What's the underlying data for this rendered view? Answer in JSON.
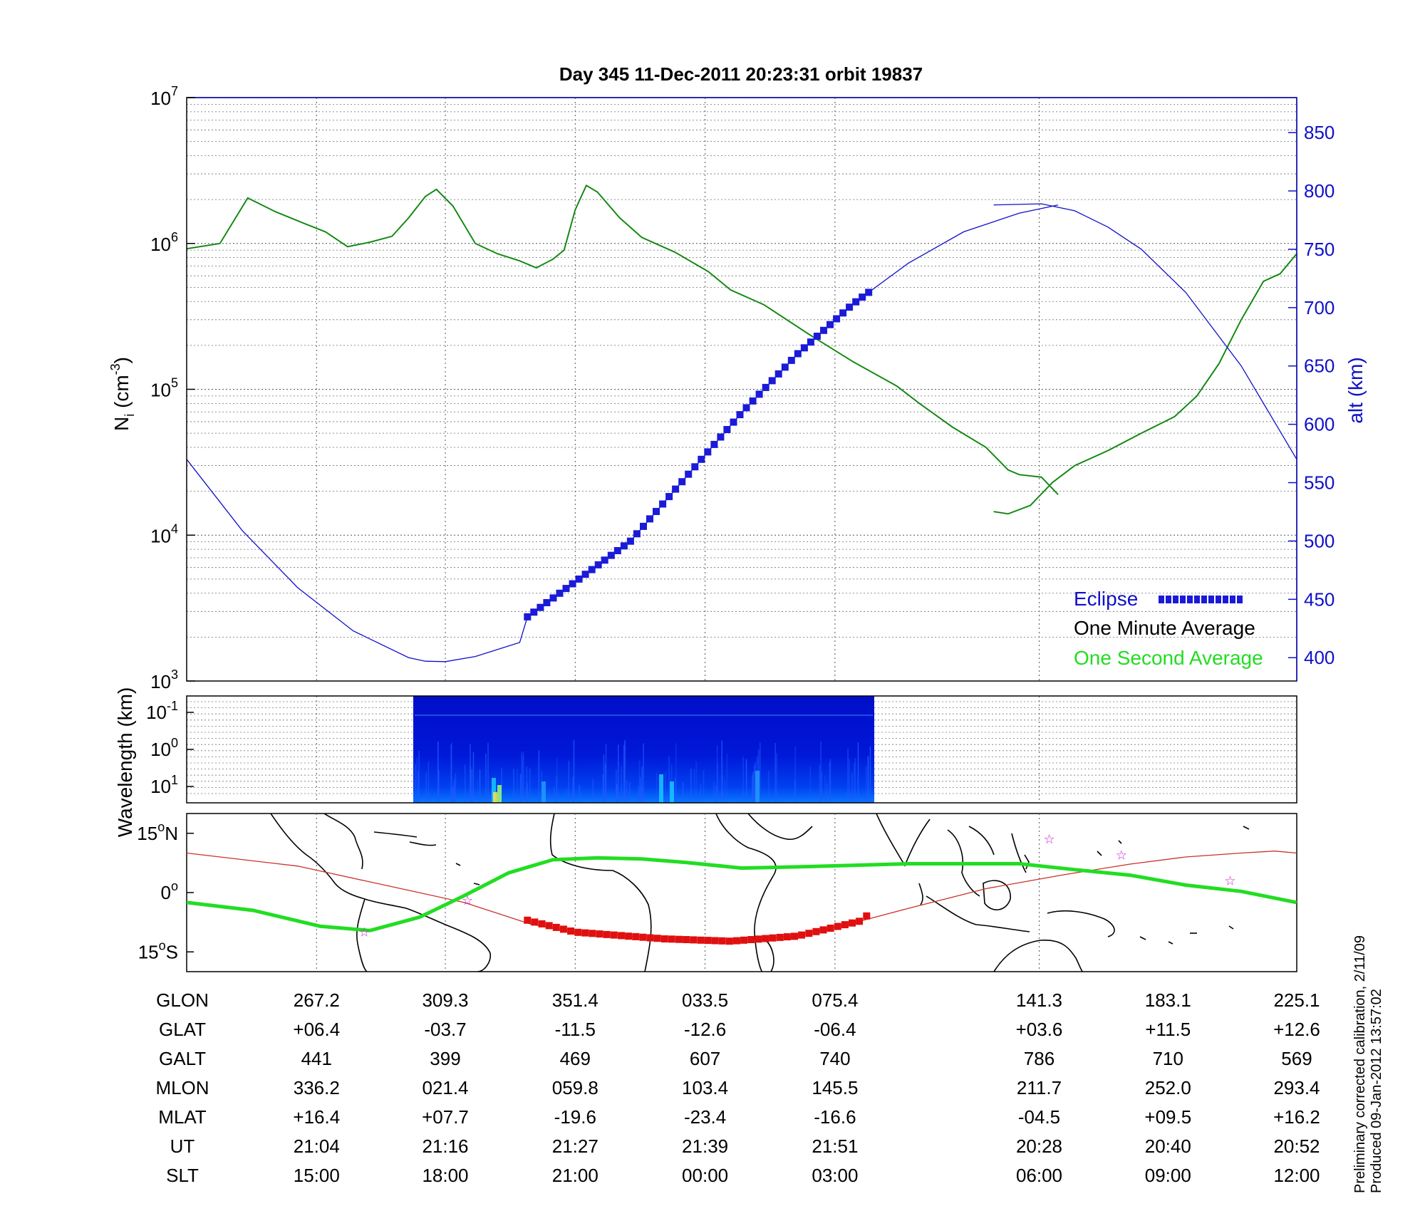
{
  "chart_data": [
    {
      "type": "line",
      "title": "Day 345  11-Dec-2011 20:23:31   orbit 19837",
      "ylabel": "N",
      "ylabel_sub": "i",
      "ylabel_unit": "(cm",
      "ylabel_unit_exp": "-3",
      "ylabel_unit_end": ")",
      "yscale": "log",
      "ylim": [
        1000,
        10000000
      ],
      "y_ticks": [
        {
          "base": "10",
          "exp": "3",
          "value": 1000
        },
        {
          "base": "10",
          "exp": "4",
          "value": 10000
        },
        {
          "base": "10",
          "exp": "5",
          "value": 100000
        },
        {
          "base": "10",
          "exp": "6",
          "value": 1000000
        },
        {
          "base": "10",
          "exp": "7",
          "value": 10000000
        }
      ],
      "y2label": "alt (km)",
      "y2lim": [
        380,
        880
      ],
      "y2_ticks": [
        "400",
        "450",
        "500",
        "550",
        "600",
        "650",
        "700",
        "750",
        "800",
        "850"
      ],
      "grid": true,
      "legend_position": "bottom-right",
      "legend": [
        {
          "label": "Eclipse",
          "color": "#1a1ad8"
        },
        {
          "label": "One Minute Average",
          "color": "#000000"
        },
        {
          "label": "One Second Average",
          "color": "#22dd22"
        }
      ],
      "series": [
        {
          "name": "One Minute Average",
          "color": "#1e6b1e",
          "segments": [
            [
              [
                0,
                920000
              ],
              [
                0.03,
                1000000
              ],
              [
                0.055,
                2050000
              ],
              [
                0.08,
                1650000
              ],
              [
                0.105,
                1380000
              ],
              [
                0.125,
                1200000
              ],
              [
                0.145,
                950000
              ],
              [
                0.165,
                1020000
              ],
              [
                0.185,
                1120000
              ],
              [
                0.2,
                1500000
              ],
              [
                0.215,
                2100000
              ],
              [
                0.225,
                2350000
              ],
              [
                0.24,
                1800000
              ],
              [
                0.26,
                1000000
              ],
              [
                0.28,
                850000
              ],
              [
                0.3,
                760000
              ],
              [
                0.315,
                680000
              ],
              [
                0.33,
                780000
              ],
              [
                0.34,
                900000
              ],
              [
                0.35,
                1700000
              ],
              [
                0.36,
                2500000
              ],
              [
                0.37,
                2250000
              ],
              [
                0.39,
                1500000
              ],
              [
                0.41,
                1100000
              ],
              [
                0.44,
                870000
              ],
              [
                0.47,
                640000
              ],
              [
                0.49,
                480000
              ],
              [
                0.52,
                380000
              ],
              [
                0.56,
                240000
              ],
              [
                0.6,
                155000
              ],
              [
                0.64,
                105000
              ],
              [
                0.66,
                80000
              ],
              [
                0.69,
                55000
              ],
              [
                0.72,
                40000
              ],
              [
                0.74,
                28000
              ],
              [
                0.75,
                26000
              ],
              [
                0.77,
                25000
              ],
              [
                0.785,
                19000
              ]
            ],
            [
              [
                0.727,
                14500
              ],
              [
                0.74,
                14000
              ],
              [
                0.76,
                16000
              ],
              [
                0.78,
                23000
              ],
              [
                0.8,
                30000
              ],
              [
                0.83,
                38000
              ],
              [
                0.86,
                50000
              ],
              [
                0.89,
                65000
              ],
              [
                0.91,
                90000
              ],
              [
                0.93,
                150000
              ],
              [
                0.95,
                300000
              ],
              [
                0.97,
                550000
              ],
              [
                0.985,
                620000
              ],
              [
                1.0,
                850000
              ]
            ]
          ]
        },
        {
          "name": "altitude",
          "axis": "right",
          "color": "#1010c8",
          "segments": [
            [
              [
                0,
                570
              ],
              [
                0.05,
                509
              ],
              [
                0.1,
                460
              ],
              [
                0.15,
                423
              ],
              [
                0.2,
                400
              ],
              [
                0.215,
                397
              ],
              [
                0.233,
                396.6
              ],
              [
                0.26,
                401
              ],
              [
                0.3,
                413
              ],
              [
                0.307,
                435
              ],
              [
                0.35,
                465
              ],
              [
                0.4,
                500
              ],
              [
                0.45,
                555
              ],
              [
                0.5,
                610
              ],
              [
                0.55,
                660
              ],
              [
                0.6,
                703
              ],
              [
                0.65,
                738
              ],
              [
                0.7,
                765
              ],
              [
                0.75,
                781
              ],
              [
                0.785,
                788
              ]
            ],
            [
              [
                0.727,
                788
              ],
              [
                0.77,
                789
              ],
              [
                0.8,
                783
              ],
              [
                0.83,
                769
              ],
              [
                0.86,
                750
              ],
              [
                0.9,
                713
              ],
              [
                0.95,
                650
              ],
              [
                1.0,
                570
              ]
            ]
          ]
        }
      ]
    },
    {
      "type": "heatmap",
      "ylabel": "Wavelength (km)",
      "y_ticks": [
        {
          "base": "10",
          "exp": "-1"
        },
        {
          "base": "10",
          "exp": "0"
        },
        {
          "base": "10",
          "exp": "1"
        }
      ],
      "data_extent": [
        0.203,
        0.618
      ],
      "colormap": "jet"
    },
    {
      "type": "line",
      "y_ticks": [
        {
          "text": "15",
          "deg": "o",
          "hemi": "N"
        },
        {
          "text": "0",
          "deg": "o",
          "hemi": ""
        },
        {
          "text": "15",
          "deg": "o",
          "hemi": "S"
        }
      ],
      "ylim": [
        -20,
        20
      ],
      "map": "world coastlines",
      "series": [
        {
          "name": "orbit track",
          "color": "#c8322a",
          "points": [
            [
              0,
              10
            ],
            [
              0.1,
              6.7
            ],
            [
              0.16,
              3
            ],
            [
              0.25,
              -2.5
            ],
            [
              0.31,
              -8
            ],
            [
              0.35,
              -10
            ],
            [
              0.43,
              -11.7
            ],
            [
              0.49,
              -12.3
            ],
            [
              0.55,
              -11
            ],
            [
              0.61,
              -7
            ],
            [
              0.65,
              -4
            ],
            [
              0.72,
              1
            ],
            [
              0.79,
              4.5
            ],
            [
              0.85,
              7.2
            ],
            [
              0.9,
              9
            ],
            [
              0.95,
              10
            ],
            [
              0.98,
              10.5
            ],
            [
              1.0,
              10
            ]
          ]
        },
        {
          "name": "magnetic equator",
          "color": "#22dd22",
          "points": [
            [
              0,
              -2.5
            ],
            [
              0.06,
              -4.5
            ],
            [
              0.12,
              -8.5
            ],
            [
              0.165,
              -9.6
            ],
            [
              0.21,
              -6.2
            ],
            [
              0.25,
              -0.8
            ],
            [
              0.29,
              5
            ],
            [
              0.33,
              8.3
            ],
            [
              0.37,
              8.8
            ],
            [
              0.41,
              8.5
            ],
            [
              0.45,
              7.6
            ],
            [
              0.5,
              6.2
            ],
            [
              0.55,
              6.5
            ],
            [
              0.6,
              6.9
            ],
            [
              0.65,
              7.3
            ],
            [
              0.7,
              7.3
            ],
            [
              0.75,
              7.3
            ],
            [
              0.8,
              5.8
            ],
            [
              0.85,
              4.4
            ],
            [
              0.9,
              1.9
            ],
            [
              0.95,
              0.3
            ],
            [
              1.0,
              -2.5
            ]
          ]
        },
        {
          "name": "eclipse",
          "color": "#e01010",
          "points": [
            [
              0.307,
              -7
            ],
            [
              0.35,
              -10
            ],
            [
              0.43,
              -11.7
            ],
            [
              0.49,
              -12.3
            ],
            [
              0.55,
              -11
            ],
            [
              0.61,
              -7
            ],
            [
              0.618,
              -3.5
            ]
          ]
        }
      ],
      "stars": [
        [
          0.16,
          -10
        ],
        [
          0.253,
          -2
        ],
        [
          0.777,
          13.5
        ],
        [
          0.842,
          9.5
        ],
        [
          0.94,
          3
        ]
      ]
    }
  ],
  "table": {
    "row_labels": [
      "GLON",
      "GLAT",
      "GALT",
      "MLON",
      "MLAT",
      "UT",
      "SLT"
    ],
    "columns": [
      {
        "x": 0.117,
        "values": [
          "267.2",
          "+06.4",
          "441",
          "336.2",
          "+16.4",
          "21:04",
          "15:00"
        ]
      },
      {
        "x": 0.233,
        "values": [
          "309.3",
          "-03.7",
          "399",
          "021.4",
          "+07.7",
          "21:16",
          "18:00"
        ]
      },
      {
        "x": 0.35,
        "values": [
          "351.4",
          "-11.5",
          "469",
          "059.8",
          "-19.6",
          "21:27",
          "21:00"
        ]
      },
      {
        "x": 0.467,
        "values": [
          "033.5",
          "-12.6",
          "607",
          "103.4",
          "-23.4",
          "21:39",
          "00:00"
        ]
      },
      {
        "x": 0.584,
        "values": [
          "075.4",
          "-06.4",
          "740",
          "145.5",
          "-16.6",
          "21:51",
          "03:00"
        ]
      },
      {
        "x": 0.768,
        "values": [
          "141.3",
          "+03.6",
          "786",
          "211.7",
          "-04.5",
          "20:28",
          "06:00"
        ]
      },
      {
        "x": 0.884,
        "values": [
          "183.1",
          "+11.5",
          "710",
          "252.0",
          "+09.5",
          "20:40",
          "09:00"
        ]
      },
      {
        "x": 1.0,
        "values": [
          "225.1",
          "+12.6",
          "569",
          "293.4",
          "+16.2",
          "20:52",
          "12:00"
        ]
      }
    ]
  },
  "notes": [
    "Preliminary corrected calibration, 2/11/09",
    "Produced 09-Jan-2012 13:57:02"
  ]
}
